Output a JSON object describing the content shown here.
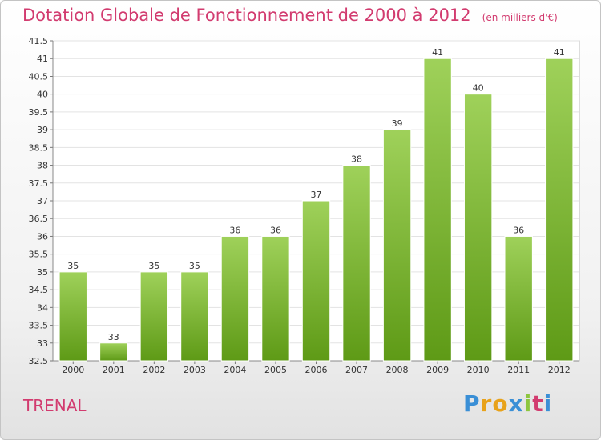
{
  "header": {
    "title": "Dotation Globale de Fonctionnement de 2000 à 2012",
    "subtitle": "(en milliers d'€)"
  },
  "footer": {
    "place": "TRENAL",
    "brand": "Proxiti",
    "brand_letter_colors": [
      "#3a8fd6",
      "#e8a21a",
      "#e8a21a",
      "#3a8fd6",
      "#8dc63f",
      "#d23b6f",
      "#3a8fd6"
    ]
  },
  "colors": {
    "bar_light": "#9fd15a",
    "bar_dark": "#5e9a16",
    "title": "#d23b6f"
  },
  "chart_data": {
    "type": "bar",
    "categories": [
      "2000",
      "2001",
      "2002",
      "2003",
      "2004",
      "2005",
      "2006",
      "2007",
      "2008",
      "2009",
      "2010",
      "2011",
      "2012"
    ],
    "values": [
      35,
      33,
      35,
      35,
      36,
      36,
      37,
      38,
      39,
      41,
      40,
      36,
      41
    ],
    "data_labels": [
      "35",
      "33",
      "35",
      "35",
      "36",
      "36",
      "37",
      "38",
      "39",
      "41",
      "40",
      "36",
      "41"
    ],
    "title": "Dotation Globale de Fonctionnement de 2000 à 2012",
    "ylim": [
      32.5,
      41.5
    ],
    "y_ticks": [
      32.5,
      33,
      33.5,
      34,
      34.5,
      35,
      35.5,
      36,
      36.5,
      37,
      37.5,
      38,
      38.5,
      39,
      39.5,
      40,
      40.5,
      41,
      41.5
    ],
    "y_tick_labels": [
      "32.5",
      "33",
      "33.5",
      "34",
      "34.5",
      "35",
      "35.5",
      "36",
      "36.5",
      "37",
      "37.5",
      "38",
      "38.5",
      "39",
      "39.5",
      "40",
      "40.5",
      "41",
      "41.5"
    ],
    "grid": true,
    "legend": "none"
  }
}
